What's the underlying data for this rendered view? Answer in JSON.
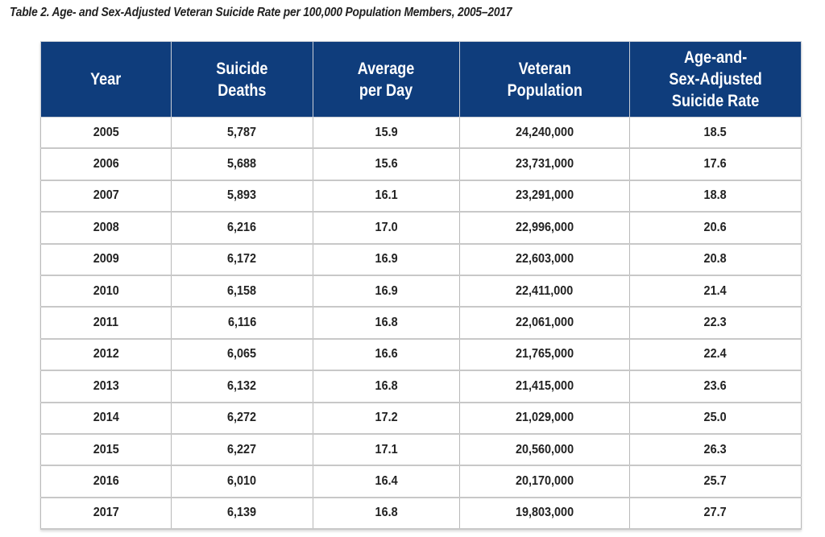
{
  "title": "Table 2. Age- and Sex-Adjusted Veteran Suicide Rate per 100,000 Population Members, 2005–2017",
  "colors": {
    "header_bg": "#0f3d7c",
    "header_text": "#ffffff"
  },
  "columns": [
    [
      "Year"
    ],
    [
      "Suicide",
      "Deaths"
    ],
    [
      "Average",
      "per Day"
    ],
    [
      "Veteran",
      "Population"
    ],
    [
      "Age-and-",
      "Sex-Adjusted",
      "Suicide Rate"
    ]
  ],
  "rows": [
    [
      "2005",
      "5,787",
      "15.9",
      "24,240,000",
      "18.5"
    ],
    [
      "2006",
      "5,688",
      "15.6",
      "23,731,000",
      "17.6"
    ],
    [
      "2007",
      "5,893",
      "16.1",
      "23,291,000",
      "18.8"
    ],
    [
      "2008",
      "6,216",
      "17.0",
      "22,996,000",
      "20.6"
    ],
    [
      "2009",
      "6,172",
      "16.9",
      "22,603,000",
      "20.8"
    ],
    [
      "2010",
      "6,158",
      "16.9",
      "22,411,000",
      "21.4"
    ],
    [
      "2011",
      "6,116",
      "16.8",
      "22,061,000",
      "22.3"
    ],
    [
      "2012",
      "6,065",
      "16.6",
      "21,765,000",
      "22.4"
    ],
    [
      "2013",
      "6,132",
      "16.8",
      "21,415,000",
      "23.6"
    ],
    [
      "2014",
      "6,272",
      "17.2",
      "21,029,000",
      "25.0"
    ],
    [
      "2015",
      "6,227",
      "17.1",
      "20,560,000",
      "26.3"
    ],
    [
      "2016",
      "6,010",
      "16.4",
      "20,170,000",
      "25.7"
    ],
    [
      "2017",
      "6,139",
      "16.8",
      "19,803,000",
      "27.7"
    ]
  ]
}
